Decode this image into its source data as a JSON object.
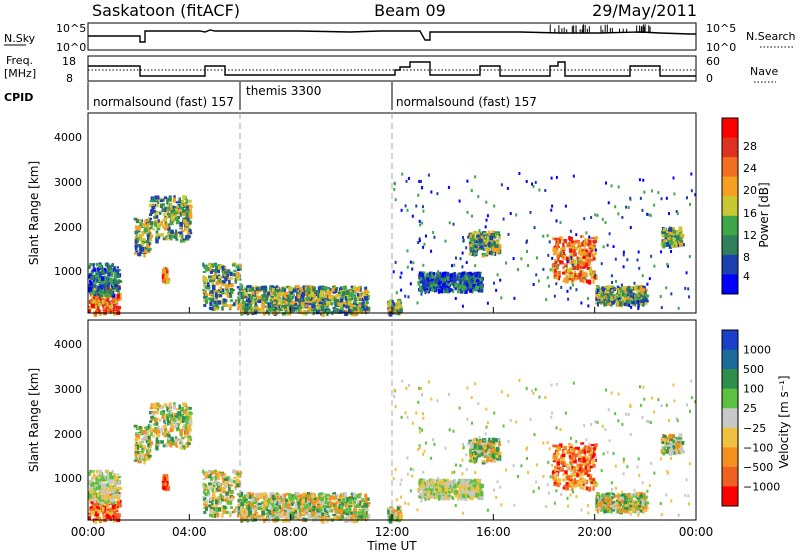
{
  "header": {
    "station": "Saskatoon (fitACF)",
    "beam": "Beam 09",
    "date": "29/May/2011"
  },
  "noise_panel": {
    "left_label": "N.Sky",
    "left_ticks": [
      "10^5",
      "10^0"
    ],
    "right_ticks": [
      "10^5",
      "10^0"
    ],
    "right_label": "N.Search"
  },
  "freq_panel": {
    "left_label_1": "Freq.",
    "left_label_2": "[MHz]",
    "left_ticks": [
      "18",
      "8"
    ],
    "right_ticks": [
      "60",
      "0"
    ],
    "right_label": "Nave"
  },
  "cpid": {
    "label": "CPID",
    "segments": [
      {
        "text": "normalsound (fast) 157",
        "start_h": 0.0
      },
      {
        "text": "themis 3300",
        "start_h": 6.0
      },
      {
        "text": "normalsound (fast) 157",
        "start_h": 12.0
      }
    ]
  },
  "x_axis": {
    "ticks": [
      "00:00",
      "04:00",
      "08:00",
      "12:00",
      "16:00",
      "20:00",
      "00:00"
    ],
    "tick_hours": [
      0,
      4,
      8,
      12,
      16,
      20,
      24
    ],
    "label": "Time UT"
  },
  "power_panel": {
    "ylabel": "Slant Range [km]",
    "yticks": [
      "1000",
      "2000",
      "3000",
      "4000"
    ],
    "cbar_label": "Power [dB]",
    "cbar_ticks": [
      "4",
      "8",
      "12",
      "16",
      "20",
      "24",
      "28"
    ],
    "cbar_colors": [
      "#0000ff",
      "#1d3fb0",
      "#2e7f5a",
      "#3fa74a",
      "#c8c832",
      "#f5a020",
      "#f07020",
      "#e03020",
      "#ff0000"
    ]
  },
  "velocity_panel": {
    "ylabel": "Slant Range [km]",
    "yticks": [
      "1000",
      "2000",
      "3000",
      "4000"
    ],
    "cbar_label": "Velocity [m s⁻¹]",
    "cbar_ticks": [
      "1000",
      "500",
      "100",
      "25",
      "−25",
      "−100",
      "−500",
      "−1000"
    ],
    "cbar_colors": [
      "#1a3fc8",
      "#1d6a9c",
      "#2e8f4a",
      "#5cc040",
      "#c8c8c8",
      "#f0c040",
      "#f59020",
      "#f06020",
      "#ff0000"
    ]
  },
  "chart_data": {
    "type": "heatmap",
    "x_range_h": [
      0,
      24
    ],
    "y_range_km": [
      180,
      4600
    ],
    "mode_change_h": [
      6.0,
      12.0
    ],
    "power_blobs": [
      {
        "t0": 0.0,
        "t1": 1.2,
        "r0": 200,
        "r1": 800,
        "level": "high"
      },
      {
        "t0": 0.0,
        "t1": 1.2,
        "r0": 600,
        "r1": 1300,
        "level": "low"
      },
      {
        "t0": 1.8,
        "t1": 2.4,
        "r0": 1500,
        "r1": 2300,
        "level": "mid"
      },
      {
        "t0": 2.4,
        "t1": 4.0,
        "r0": 1800,
        "r1": 2800,
        "level": "mid"
      },
      {
        "t0": 2.9,
        "t1": 3.1,
        "r0": 900,
        "r1": 1200,
        "level": "high"
      },
      {
        "t0": 4.5,
        "t1": 6.0,
        "r0": 300,
        "r1": 1300,
        "level": "mid"
      },
      {
        "t0": 6.0,
        "t1": 11.0,
        "r0": 200,
        "r1": 800,
        "level": "mid"
      },
      {
        "t0": 11.8,
        "t1": 12.3,
        "r0": 200,
        "r1": 500,
        "level": "mid"
      },
      {
        "t0": 13.0,
        "t1": 15.5,
        "r0": 700,
        "r1": 1100,
        "level": "low"
      },
      {
        "t0": 15.0,
        "t1": 16.2,
        "r0": 1500,
        "r1": 2000,
        "level": "mid"
      },
      {
        "t0": 18.3,
        "t1": 20.0,
        "r0": 900,
        "r1": 1900,
        "level": "high"
      },
      {
        "t0": 20.0,
        "t1": 22.0,
        "r0": 400,
        "r1": 800,
        "level": "mid"
      },
      {
        "t0": 22.6,
        "t1": 23.4,
        "r0": 1700,
        "r1": 2100,
        "level": "mid"
      }
    ]
  }
}
